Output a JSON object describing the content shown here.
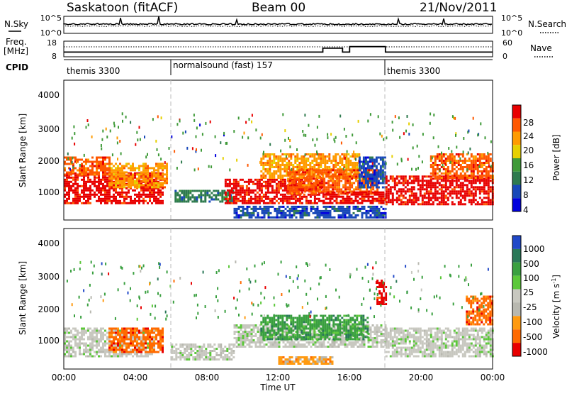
{
  "header": {
    "station": "Saskatoon (fitACF)",
    "beam": "Beam 00",
    "date": "21/Nov/2011"
  },
  "noise_panel": {
    "left_label": "N.Sky",
    "left_ticks": [
      "10^5",
      "10^0"
    ],
    "right_label": "N.Search",
    "right_ticks": [
      "10^5",
      "10^0"
    ]
  },
  "freq_panel": {
    "left_label_1": "Freq.",
    "left_label_2": "[MHz]",
    "left_ticks": [
      "18",
      "8"
    ],
    "right_label": "Nave",
    "right_ticks": [
      "60",
      "0"
    ]
  },
  "cpid": {
    "label": "CPID",
    "segments": [
      {
        "name": "themis 3300",
        "start_hr": 0
      },
      {
        "name": "normalsound (fast) 157",
        "start_hr": 6
      },
      {
        "name": "themis 3300",
        "start_hr": 18
      }
    ]
  },
  "x_axis": {
    "title": "Time UT",
    "ticks": [
      "00:00",
      "04:00",
      "08:00",
      "12:00",
      "16:00",
      "20:00",
      "00:00"
    ]
  },
  "power_panel": {
    "ylabel": "Slant Range [km]",
    "yticks": [
      "4000",
      "3000",
      "2000",
      "1000"
    ],
    "colorbar_title": "Power [dB]",
    "colorbar_ticks": [
      "28",
      "24",
      "20",
      "16",
      "12",
      "8",
      "4"
    ]
  },
  "velocity_panel": {
    "ylabel": "Slant Range [km]",
    "yticks": [
      "4000",
      "3000",
      "2000",
      "1000"
    ],
    "colorbar_title": "Velocity [m s",
    "colorbar_title_sup": "-1",
    "colorbar_title_end": "]",
    "colorbar_ticks": [
      "1000",
      "500",
      "100",
      "25",
      "-25",
      "-100",
      "-500",
      "-1000"
    ]
  },
  "chart_data": {
    "type": "heatmap",
    "x_range_hours": [
      0,
      24
    ],
    "y_range_km": [
      200,
      4600
    ],
    "power_scale_db": [
      0,
      30
    ],
    "velocity_scale_ms": [
      -1000,
      1000
    ],
    "power_colors": [
      "#0000dd",
      "#1848b8",
      "#2e7a4e",
      "#3f9a38",
      "#e6d000",
      "#ff9b00",
      "#ff5800",
      "#e80000"
    ],
    "velocity_colors": [
      "#2048c8",
      "#2a7858",
      "#3aa040",
      "#5cc83a",
      "#c8c8c0",
      "#b8b8b0",
      "#ff9a10",
      "#ff6a00",
      "#e80000"
    ],
    "freq_mhz_segments": [
      {
        "start_hr": 0,
        "end_hr": 14.5,
        "value": 11
      },
      {
        "start_hr": 14.5,
        "end_hr": 15.6,
        "value": 13.5
      },
      {
        "start_hr": 15.6,
        "end_hr": 16.0,
        "value": 11
      },
      {
        "start_hr": 16.0,
        "end_hr": 18.0,
        "value": 14.5
      },
      {
        "start_hr": 18.0,
        "end_hr": 24,
        "value": 11
      }
    ],
    "power_regions": [
      {
        "t0": 0.0,
        "t1": 5.5,
        "r0": 700,
        "r1": 1700,
        "level": 7
      },
      {
        "t0": 0.0,
        "t1": 2.5,
        "r0": 1600,
        "r1": 2200,
        "level": 6
      },
      {
        "t0": 2.5,
        "t1": 5.8,
        "r0": 1200,
        "r1": 2000,
        "level": 5
      },
      {
        "t0": 6.2,
        "t1": 9.5,
        "r0": 750,
        "r1": 1150,
        "level": 2
      },
      {
        "t0": 9.0,
        "t1": 14.5,
        "r0": 700,
        "r1": 1500,
        "level": 7
      },
      {
        "t0": 11.0,
        "t1": 16.5,
        "r0": 1500,
        "r1": 2300,
        "level": 5
      },
      {
        "t0": 12.5,
        "t1": 17.5,
        "r0": 1000,
        "r1": 1800,
        "level": 6
      },
      {
        "t0": 14.5,
        "t1": 18.0,
        "r0": 700,
        "r1": 1100,
        "level": 7
      },
      {
        "t0": 16.5,
        "t1": 18.0,
        "r0": 1200,
        "r1": 2200,
        "level": 1
      },
      {
        "t0": 18.0,
        "t1": 24.0,
        "r0": 700,
        "r1": 1600,
        "level": 7
      },
      {
        "t0": 20.5,
        "t1": 24.0,
        "r0": 1500,
        "r1": 2300,
        "level": 6
      },
      {
        "t0": 9.5,
        "t1": 18.0,
        "r0": 300,
        "r1": 650,
        "level": 1
      }
    ],
    "velocity_regions": [
      {
        "t0": 0.0,
        "t1": 5.0,
        "r0": 600,
        "r1": 1500,
        "level": 4
      },
      {
        "t0": 2.5,
        "t1": 5.5,
        "r0": 700,
        "r1": 1500,
        "level": 7
      },
      {
        "t0": 6.0,
        "t1": 9.5,
        "r0": 500,
        "r1": 1000,
        "level": 4
      },
      {
        "t0": 9.5,
        "t1": 18.0,
        "r0": 900,
        "r1": 1600,
        "level": 4
      },
      {
        "t0": 11.0,
        "t1": 17.0,
        "r0": 1100,
        "r1": 1900,
        "level": 2
      },
      {
        "t0": 12.0,
        "t1": 15.0,
        "r0": 350,
        "r1": 600,
        "level": 6
      },
      {
        "t0": 18.0,
        "t1": 24.0,
        "r0": 600,
        "r1": 1500,
        "level": 4
      },
      {
        "t0": 22.5,
        "t1": 24.0,
        "r0": 1600,
        "r1": 2500,
        "level": 7
      },
      {
        "t0": 17.5,
        "t1": 18.0,
        "r0": 2200,
        "r1": 3000,
        "level": 8
      }
    ]
  }
}
